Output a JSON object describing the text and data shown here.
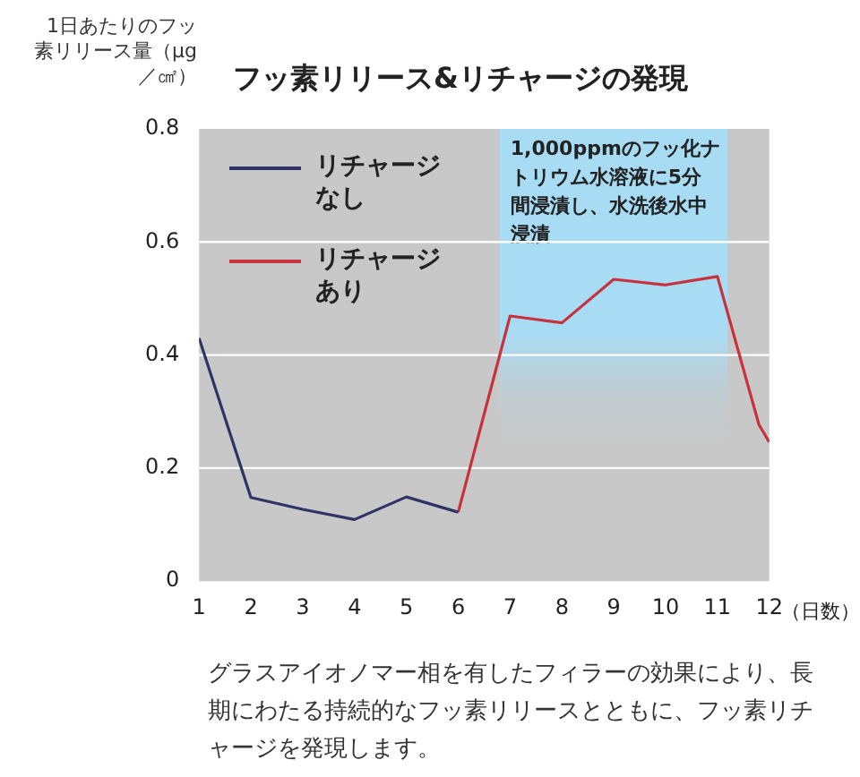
{
  "chart_data": {
    "type": "line",
    "title": "フッ素リリース&リチャージの発現",
    "ylabel": "1日あたりのフッ素リリース量（μg／㎠）",
    "xlabel": "（日数）",
    "series": [
      {
        "name": "リチャージなし",
        "color": "#2e3466",
        "x": [
          1,
          2,
          3,
          4,
          5,
          6
        ],
        "values": [
          0.43,
          0.148,
          0.127,
          0.109,
          0.149,
          0.122
        ]
      },
      {
        "name": "リチャージあり",
        "color": "#c8323c",
        "x": [
          6,
          7,
          8,
          9,
          10,
          11,
          11.8,
          12
        ],
        "values": [
          0.122,
          0.469,
          0.457,
          0.534,
          0.524,
          0.539,
          0.277,
          0.246
        ]
      }
    ],
    "xlim": [
      1,
      12
    ],
    "xticks": [
      1,
      2,
      3,
      4,
      5,
      6,
      7,
      8,
      9,
      10,
      11,
      12
    ],
    "ylim": [
      0,
      0.8
    ],
    "yticks": [
      0,
      0.2,
      0.4,
      0.6,
      0.8
    ],
    "bands": [
      {
        "axis": "x",
        "from": 6.8,
        "to": 11.2,
        "label": "1,000ppmのフッ化ナトリウム水溶液に5分間浸漬し、水洗後水中浸漬",
        "color": "#a8dcf5"
      }
    ],
    "grid": "y",
    "legend": "top left",
    "marker": "none",
    "line_style": "solid",
    "annotations": [
      "グラスアイオノマー相を有したフィラーの効果により、長期にわたる持続的なフッ素リリースとともに、フッ素リチャージを発現します。"
    ]
  }
}
